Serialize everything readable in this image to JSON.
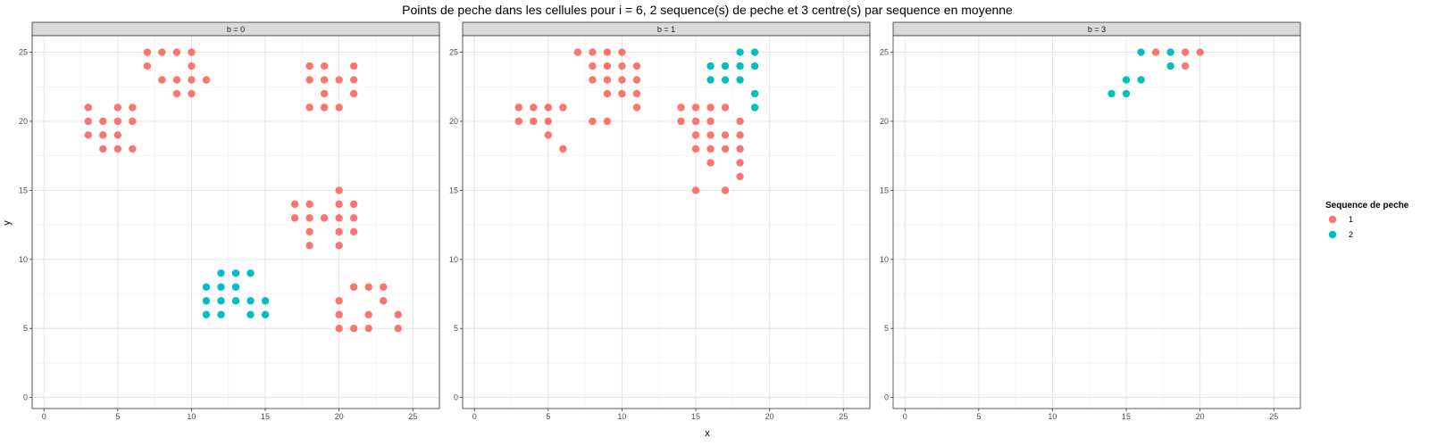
{
  "chart_data": {
    "type": "scatter",
    "title": "Points de peche dans les cellules pour i = 6, 2 sequence(s) de peche et 3 centre(s) par sequence en moyenne",
    "xlabel": "x",
    "ylabel": "y",
    "xlim": [
      -0.8,
      26.8
    ],
    "ylim": [
      -0.8,
      26.2
    ],
    "x_ticks": [
      0,
      5,
      10,
      15,
      20,
      25
    ],
    "y_ticks": [
      0,
      5,
      10,
      15,
      20,
      25
    ],
    "grid": true,
    "legend": {
      "title": "Sequence de peche",
      "position": "right",
      "entries": [
        {
          "label": "1",
          "color": "#F8766D"
        },
        {
          "label": "2",
          "color": "#00BFC4"
        }
      ]
    },
    "panels": [
      {
        "strip": "b = 0",
        "series": [
          {
            "name": "1",
            "color": "#F8766D",
            "points": [
              [
                7,
                25
              ],
              [
                8,
                25
              ],
              [
                9,
                25
              ],
              [
                10,
                25
              ],
              [
                7,
                24
              ],
              [
                8,
                23
              ],
              [
                9,
                23
              ],
              [
                10,
                24
              ],
              [
                10,
                23
              ],
              [
                9,
                22
              ],
              [
                10,
                22
              ],
              [
                11,
                23
              ],
              [
                3,
                21
              ],
              [
                5,
                21
              ],
              [
                6,
                21
              ],
              [
                3,
                20
              ],
              [
                4,
                20
              ],
              [
                5,
                20
              ],
              [
                6,
                20
              ],
              [
                3,
                19
              ],
              [
                4,
                19
              ],
              [
                5,
                19
              ],
              [
                4,
                18
              ],
              [
                5,
                18
              ],
              [
                6,
                18
              ],
              [
                18,
                24
              ],
              [
                19,
                24
              ],
              [
                21,
                24
              ],
              [
                18,
                23
              ],
              [
                19,
                23
              ],
              [
                20,
                23
              ],
              [
                21,
                23
              ],
              [
                19,
                22
              ],
              [
                21,
                22
              ],
              [
                18,
                21
              ],
              [
                19,
                21
              ],
              [
                20,
                21
              ],
              [
                20,
                15
              ],
              [
                17,
                14
              ],
              [
                18,
                14
              ],
              [
                20,
                14
              ],
              [
                21,
                14
              ],
              [
                17,
                13
              ],
              [
                18,
                13
              ],
              [
                19,
                13
              ],
              [
                20,
                13
              ],
              [
                21,
                13
              ],
              [
                18,
                12
              ],
              [
                20,
                12
              ],
              [
                21,
                12
              ],
              [
                18,
                11
              ],
              [
                20,
                11
              ],
              [
                21,
                8
              ],
              [
                22,
                8
              ],
              [
                23,
                8
              ],
              [
                20,
                7
              ],
              [
                23,
                7
              ],
              [
                20,
                6
              ],
              [
                22,
                6
              ],
              [
                24,
                6
              ],
              [
                20,
                5
              ],
              [
                21,
                5
              ],
              [
                22,
                5
              ],
              [
                24,
                5
              ]
            ]
          },
          {
            "name": "2",
            "color": "#00BFC4",
            "points": [
              [
                12,
                9
              ],
              [
                13,
                9
              ],
              [
                14,
                9
              ],
              [
                11,
                8
              ],
              [
                12,
                8
              ],
              [
                13,
                8
              ],
              [
                11,
                7
              ],
              [
                12,
                7
              ],
              [
                13,
                7
              ],
              [
                14,
                7
              ],
              [
                15,
                7
              ],
              [
                11,
                6
              ],
              [
                12,
                6
              ],
              [
                14,
                6
              ],
              [
                15,
                6
              ]
            ]
          }
        ]
      },
      {
        "strip": "b = 1",
        "series": [
          {
            "name": "1",
            "color": "#F8766D",
            "points": [
              [
                7,
                25
              ],
              [
                8,
                25
              ],
              [
                9,
                25
              ],
              [
                10,
                25
              ],
              [
                8,
                24
              ],
              [
                9,
                24
              ],
              [
                10,
                24
              ],
              [
                11,
                24
              ],
              [
                8,
                23
              ],
              [
                9,
                23
              ],
              [
                10,
                23
              ],
              [
                11,
                23
              ],
              [
                9,
                22
              ],
              [
                10,
                22
              ],
              [
                11,
                22
              ],
              [
                11,
                21
              ],
              [
                8,
                20
              ],
              [
                9,
                20
              ],
              [
                3,
                21
              ],
              [
                4,
                21
              ],
              [
                5,
                21
              ],
              [
                6,
                21
              ],
              [
                3,
                20
              ],
              [
                4,
                20
              ],
              [
                5,
                20
              ],
              [
                5,
                19
              ],
              [
                6,
                18
              ],
              [
                14,
                21
              ],
              [
                15,
                21
              ],
              [
                16,
                21
              ],
              [
                17,
                21
              ],
              [
                14,
                20
              ],
              [
                15,
                20
              ],
              [
                16,
                20
              ],
              [
                18,
                20
              ],
              [
                15,
                19
              ],
              [
                16,
                19
              ],
              [
                17,
                19
              ],
              [
                18,
                19
              ],
              [
                15,
                18
              ],
              [
                16,
                18
              ],
              [
                17,
                18
              ],
              [
                18,
                18
              ],
              [
                16,
                17
              ],
              [
                18,
                17
              ],
              [
                18,
                16
              ],
              [
                15,
                15
              ],
              [
                17,
                15
              ]
            ]
          },
          {
            "name": "2",
            "color": "#00BFC4",
            "points": [
              [
                18,
                25
              ],
              [
                19,
                25
              ],
              [
                16,
                24
              ],
              [
                17,
                24
              ],
              [
                18,
                24
              ],
              [
                19,
                24
              ],
              [
                16,
                23
              ],
              [
                17,
                23
              ],
              [
                18,
                23
              ],
              [
                19,
                22
              ],
              [
                19,
                21
              ]
            ]
          }
        ]
      },
      {
        "strip": "b = 3",
        "series": [
          {
            "name": "1",
            "color": "#F8766D",
            "points": [
              [
                17,
                25
              ],
              [
                19,
                25
              ],
              [
                20,
                25
              ],
              [
                19,
                24
              ]
            ]
          },
          {
            "name": "2",
            "color": "#00BFC4",
            "points": [
              [
                16,
                25
              ],
              [
                18,
                25
              ],
              [
                18,
                24
              ],
              [
                15,
                23
              ],
              [
                16,
                23
              ],
              [
                14,
                22
              ],
              [
                15,
                22
              ]
            ]
          }
        ]
      }
    ]
  }
}
